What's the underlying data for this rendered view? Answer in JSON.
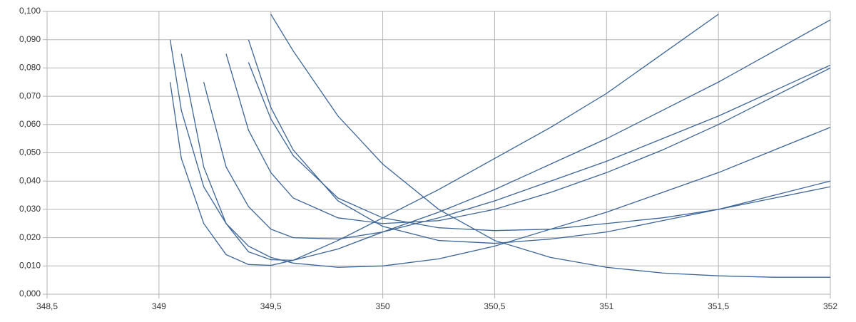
{
  "chart_data": {
    "type": "line",
    "x": [
      349.0,
      349.05,
      349.1,
      349.2,
      349.3,
      349.4,
      349.5,
      349.6,
      349.8,
      350,
      350.25,
      350.5,
      350.75,
      351,
      351.25,
      351.5,
      351.75,
      352
    ],
    "series": [
      {
        "color": "#3b6497",
        "values": [
          null,
          0.075,
          0.048,
          0.025,
          0.014,
          0.0105,
          0.0102,
          0.012,
          0.019,
          0.027,
          0.037,
          0.048,
          0.059,
          0.071,
          0.085,
          0.099,
          null,
          null
        ]
      },
      {
        "color": "#3b6497",
        "values": [
          null,
          null,
          0.085,
          0.045,
          0.025,
          0.015,
          0.0122,
          0.012,
          0.016,
          0.022,
          0.029,
          0.037,
          0.046,
          0.055,
          0.065,
          0.075,
          0.086,
          0.097
        ]
      },
      {
        "color": "#3b6497",
        "values": [
          null,
          0.09,
          0.065,
          0.038,
          0.025,
          0.017,
          0.013,
          0.011,
          0.0095,
          0.01,
          0.0125,
          0.017,
          0.023,
          0.029,
          0.036,
          0.043,
          0.051,
          0.059
        ]
      },
      {
        "color": "#3b6497",
        "values": [
          null,
          null,
          null,
          0.075,
          0.045,
          0.031,
          0.023,
          0.02,
          0.0195,
          0.022,
          0.027,
          0.033,
          0.04,
          0.047,
          0.055,
          0.063,
          0.072,
          0.081
        ]
      },
      {
        "color": "#3b6497",
        "values": [
          null,
          null,
          null,
          null,
          0.085,
          0.058,
          0.043,
          0.034,
          0.027,
          0.025,
          0.026,
          0.03,
          0.036,
          0.043,
          0.051,
          0.06,
          0.07,
          0.08
        ]
      },
      {
        "color": "#3b6497",
        "values": [
          null,
          null,
          null,
          null,
          null,
          0.082,
          0.062,
          0.049,
          0.034,
          0.027,
          0.0235,
          0.0225,
          0.023,
          0.025,
          0.027,
          0.03,
          0.034,
          0.038
        ]
      },
      {
        "color": "#3b6497",
        "values": [
          null,
          null,
          null,
          null,
          null,
          0.09,
          0.066,
          0.051,
          0.033,
          0.024,
          0.019,
          0.018,
          0.0195,
          0.022,
          0.026,
          0.03,
          0.035,
          0.04
        ]
      },
      {
        "color": "#3b6497",
        "values": [
          null,
          null,
          null,
          null,
          null,
          null,
          0.099,
          0.086,
          0.063,
          0.046,
          0.03,
          0.019,
          0.013,
          0.0095,
          0.0075,
          0.0065,
          0.006,
          0.006
        ]
      }
    ],
    "xlim": [
      348.5,
      352
    ],
    "xticks": [
      {
        "value": 348.5,
        "label": "348,5"
      },
      349,
      {
        "value": 349.5,
        "label": "349,5"
      },
      350,
      {
        "value": 350.5,
        "label": "350,5"
      },
      351,
      {
        "value": 351.5,
        "label": "351,5"
      },
      352
    ],
    "ylim": [
      0,
      0.1
    ],
    "yticks": [
      {
        "value": 0,
        "label": "0,000"
      },
      {
        "value": 0.01,
        "label": "0,010"
      },
      {
        "value": 0.02,
        "label": "0,020"
      },
      {
        "value": 0.03,
        "label": "0,030"
      },
      {
        "value": 0.04,
        "label": "0,040"
      },
      {
        "value": 0.05,
        "label": "0,050"
      },
      {
        "value": 0.06,
        "label": "0,060"
      },
      {
        "value": 0.07,
        "label": "0,070"
      },
      {
        "value": 0.08,
        "label": "0,080"
      },
      {
        "value": 0.09,
        "label": "0,090"
      },
      {
        "value": 0.1,
        "label": "0,100"
      }
    ],
    "grid": true
  }
}
